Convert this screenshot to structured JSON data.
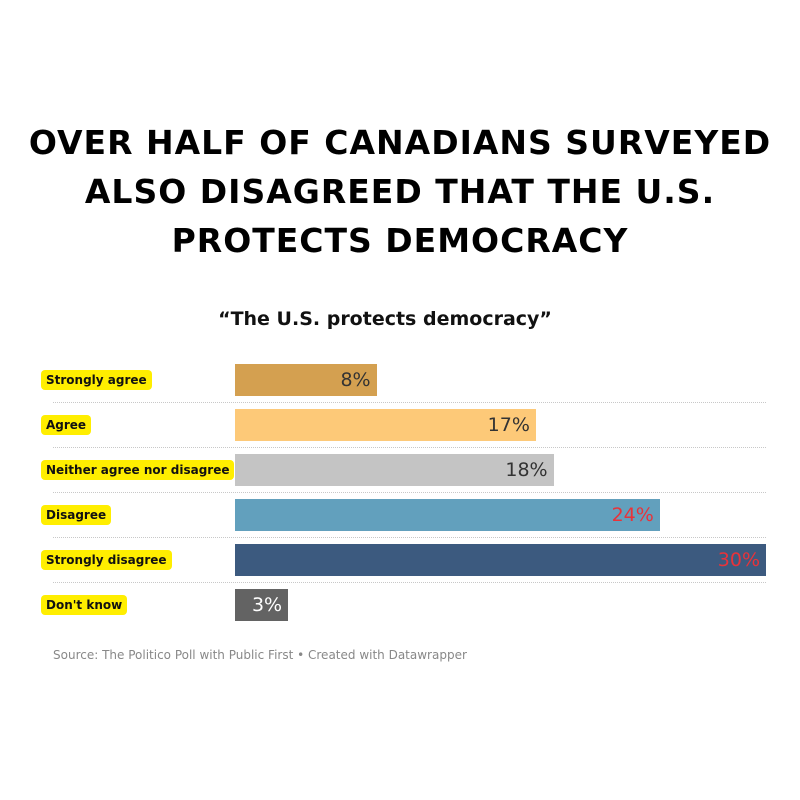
{
  "headline": "Over half of Canadians surveyed also disagreed that the U.S. protects democracy",
  "chart_data": {
    "type": "bar",
    "orientation": "horizontal",
    "title": "“The U.S. protects democracy”",
    "categories": [
      "Strongly agree",
      "Agree",
      "Neither agree nor disagree",
      "Disagree",
      "Strongly disagree",
      "Don't know"
    ],
    "values": [
      8,
      17,
      18,
      24,
      30,
      3
    ],
    "value_labels": [
      "8%",
      "17%",
      "18%",
      "24%",
      "30%",
      "3%"
    ],
    "colors": [
      "#d4a050",
      "#fdc978",
      "#c4c4c4",
      "#62a0bd",
      "#3c5a7f",
      "#636363"
    ],
    "label_colors": [
      "#333333",
      "#333333",
      "#333333",
      "#e8333a",
      "#e8333a",
      "#ffffff"
    ],
    "label_highlight": "#ffee00",
    "grid": false
  },
  "source": "Source: The Politico Poll with Public First • Created with Datawrapper"
}
